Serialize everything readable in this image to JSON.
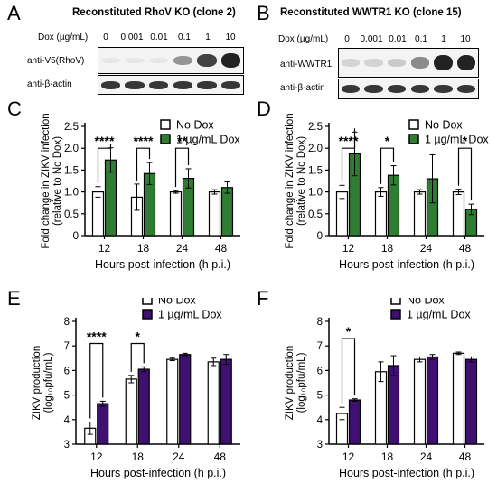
{
  "colors": {
    "green": "#2e7d32",
    "purple": "#3f1072",
    "white": "#ffffff",
    "black": "#000000"
  },
  "panels": {
    "A": {
      "letter": "A",
      "title": "Reconstituted RhoV KO (clone 2)",
      "dox_label": "Dox (µg/mL)",
      "doses": [
        "0",
        "0.001",
        "0.01",
        "0.1",
        "1",
        "10"
      ],
      "antibodies": [
        "anti-V5(RhoV)",
        "anti-β-actin"
      ],
      "target_band_intensity": [
        0.0,
        0.0,
        0.0,
        0.45,
        0.85,
        1.0
      ],
      "actin_band_intensity": [
        1,
        1,
        1,
        1,
        1,
        1
      ]
    },
    "B": {
      "letter": "B",
      "title": "Reconstituted WWTR1 KO (clone 15)",
      "dox_label": "Dox (µg/mL)",
      "doses": [
        "0",
        "0.001",
        "0.01",
        "0.1",
        "1",
        "10"
      ],
      "antibodies": [
        "anti-WWTR1",
        "anti-β-actin"
      ],
      "target_band_intensity": [
        0.15,
        0.15,
        0.2,
        0.5,
        1.0,
        1.0
      ],
      "actin_band_intensity": [
        1,
        1,
        1,
        1,
        1,
        1
      ]
    },
    "C": {
      "letter": "C"
    },
    "D": {
      "letter": "D"
    },
    "E": {
      "letter": "E"
    },
    "F": {
      "letter": "F"
    }
  },
  "chart_data": [
    {
      "panel": "C",
      "type": "bar",
      "categories": [
        "12",
        "18",
        "24",
        "48"
      ],
      "xlabel": "Hours post-infection (h p.i.)",
      "ylabel": [
        "Fold change in ZIKV infection",
        "(relative to No Dox)"
      ],
      "ylim": [
        0,
        2.5
      ],
      "yticks": [
        0,
        0.5,
        1.0,
        1.5,
        2.0,
        2.5
      ],
      "ytick_labels": [
        "0",
        "0.5",
        "1.0",
        "1.5",
        "2.0",
        "2.5"
      ],
      "legend": "top-right",
      "series": [
        {
          "name": "No Dox",
          "color": "#ffffff",
          "values": [
            1.0,
            0.88,
            1.0,
            1.0
          ],
          "errors": [
            0.12,
            0.3,
            0.03,
            0.05
          ]
        },
        {
          "name": "1 µg/mL Dox",
          "color": "#2e7d32",
          "values": [
            1.73,
            1.42,
            1.31,
            1.1
          ],
          "errors": [
            0.28,
            0.25,
            0.22,
            0.13
          ]
        }
      ],
      "significance": [
        {
          "category": "12",
          "label": "****",
          "level": 2.0
        },
        {
          "category": "18",
          "label": "****",
          "level": 2.0
        },
        {
          "category": "24",
          "label": "**",
          "level": 2.0
        }
      ]
    },
    {
      "panel": "D",
      "type": "bar",
      "categories": [
        "12",
        "18",
        "24",
        "48"
      ],
      "xlabel": "Hours post-infection (h p.i.)",
      "ylabel": [
        "Fold change in ZIKV infection",
        "(relative to No Dox)"
      ],
      "ylim": [
        0,
        2.5
      ],
      "yticks": [
        0,
        0.5,
        1.0,
        1.5,
        2.0,
        2.5
      ],
      "ytick_labels": [
        "0",
        "0.5",
        "1.0",
        "1.5",
        "2.0",
        "2.5"
      ],
      "legend": "top-right",
      "series": [
        {
          "name": "No Dox",
          "color": "#ffffff",
          "values": [
            1.0,
            1.0,
            1.0,
            1.0
          ],
          "errors": [
            0.15,
            0.1,
            0.05,
            0.06
          ]
        },
        {
          "name": "1 µg/mL Dox",
          "color": "#2e7d32",
          "values": [
            1.87,
            1.38,
            1.3,
            0.6
          ],
          "errors": [
            0.5,
            0.22,
            0.55,
            0.12
          ]
        }
      ],
      "significance": [
        {
          "category": "12",
          "label": "****",
          "level": 2.0
        },
        {
          "category": "18",
          "label": "*",
          "level": 2.0
        },
        {
          "category": "48",
          "label": "*",
          "level": 2.0
        }
      ]
    },
    {
      "panel": "E",
      "type": "bar",
      "categories": [
        "12",
        "18",
        "24",
        "48"
      ],
      "xlabel": "Hours post-infection (h p.i.)",
      "ylabel": [
        "ZIKV production",
        "(log₁₀pfu/mL)"
      ],
      "ylim": [
        3,
        8
      ],
      "yticks": [
        3,
        4,
        5,
        6,
        7,
        8
      ],
      "ytick_labels": [
        "3",
        "4",
        "5",
        "6",
        "7",
        "8"
      ],
      "legend": "top-right",
      "series": [
        {
          "name": "No Dox",
          "color": "#ffffff",
          "values": [
            3.65,
            5.65,
            6.45,
            6.35
          ],
          "errors": [
            0.25,
            0.15,
            0.05,
            0.15
          ]
        },
        {
          "name": "1 µg/mL Dox",
          "color": "#3f1072",
          "values": [
            4.65,
            6.05,
            6.65,
            6.45
          ],
          "errors": [
            0.1,
            0.1,
            0.05,
            0.2
          ]
        }
      ],
      "significance": [
        {
          "category": "12",
          "label": "****",
          "level": 7.1
        },
        {
          "category": "18",
          "label": "*",
          "level": 7.1
        }
      ]
    },
    {
      "panel": "F",
      "type": "bar",
      "categories": [
        "12",
        "18",
        "24",
        "48"
      ],
      "xlabel": "Hours post-infection (h p.i.)",
      "ylabel": [
        "ZIKV production",
        "(log₁₀pfu/mL)"
      ],
      "ylim": [
        3,
        8
      ],
      "yticks": [
        3,
        4,
        5,
        6,
        7,
        8
      ],
      "ytick_labels": [
        "3",
        "4",
        "5",
        "6",
        "7",
        "8"
      ],
      "legend": "top-right",
      "series": [
        {
          "name": "No Dox",
          "color": "#ffffff",
          "values": [
            4.25,
            5.95,
            6.45,
            6.7
          ],
          "errors": [
            0.25,
            0.4,
            0.1,
            0.05
          ]
        },
        {
          "name": "1 µg/mL Dox",
          "color": "#3f1072",
          "values": [
            4.8,
            6.2,
            6.55,
            6.45
          ],
          "errors": [
            0.05,
            0.4,
            0.1,
            0.1
          ]
        }
      ],
      "significance": [
        {
          "category": "12",
          "label": "*",
          "level": 7.3
        }
      ]
    }
  ]
}
